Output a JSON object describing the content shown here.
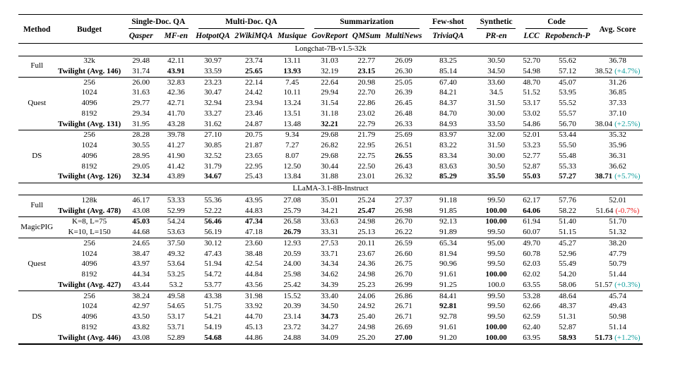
{
  "colors": {
    "teal": "#0f9e9e",
    "red": "#ed1c1c"
  },
  "table": {
    "header_groups": [
      {
        "label": "Method",
        "rowspan": 2
      },
      {
        "label": "Budget",
        "rowspan": 2
      },
      {
        "label": "Single-Doc. QA",
        "colspan": 2,
        "underline": true
      },
      {
        "label": "Multi-Doc. QA",
        "colspan": 3,
        "underline": true
      },
      {
        "label": "Summarization",
        "colspan": 3,
        "underline": true
      },
      {
        "label": "Few-shot",
        "colspan": 1,
        "underline": true
      },
      {
        "label": "Synthetic",
        "colspan": 1,
        "underline": true
      },
      {
        "label": "Code",
        "colspan": 2,
        "underline": true
      },
      {
        "label": "Avg. Score",
        "rowspan": 2
      }
    ],
    "sub_headers": [
      "Qasper",
      "MF-en",
      "HotpotQA",
      "2WikiMQA",
      "Musique",
      "GovReport",
      "QMSum",
      "MultiNews",
      "TriviaQA",
      "PR-en",
      "LCC",
      "Repobench-P"
    ],
    "sections": [
      {
        "title": "Longchat-7B-v1.5-32k",
        "groups": [
          {
            "method": "Full",
            "rows": [
              {
                "budget": "32k",
                "values": [
                  "29.48",
                  "42.11",
                  "30.97",
                  "23.74",
                  "13.11",
                  "31.03",
                  "22.77",
                  "26.09",
                  "83.25",
                  "30.50",
                  "52.70",
                  "55.62"
                ],
                "bold": [],
                "avg": "36.78"
              },
              {
                "budget": "Twilight (Avg. 146)",
                "budget_bold": true,
                "values": [
                  "31.74",
                  "43.91",
                  "33.59",
                  "25.65",
                  "13.93",
                  "32.19",
                  "23.15",
                  "26.30",
                  "85.14",
                  "34.50",
                  "54.98",
                  "57.12"
                ],
                "bold": [
                  1,
                  3,
                  4,
                  6
                ],
                "avg": "38.52",
                "delta": "(+4.7%)",
                "delta_color": "teal"
              }
            ]
          },
          {
            "method": "Quest",
            "rows": [
              {
                "budget": "256",
                "values": [
                  "26.00",
                  "32.83",
                  "23.23",
                  "22.14",
                  "7.45",
                  "22.64",
                  "20.98",
                  "25.05",
                  "67.40",
                  "33.60",
                  "48.70",
                  "45.07"
                ],
                "bold": [],
                "avg": "31.26"
              },
              {
                "budget": "1024",
                "values": [
                  "31.63",
                  "42.36",
                  "30.47",
                  "24.42",
                  "10.11",
                  "29.94",
                  "22.70",
                  "26.39",
                  "84.21",
                  "34.5",
                  "51.52",
                  "53.95"
                ],
                "bold": [],
                "avg": "36.85"
              },
              {
                "budget": "4096",
                "values": [
                  "29.77",
                  "42.71",
                  "32.94",
                  "23.94",
                  "13.24",
                  "31.54",
                  "22.86",
                  "26.45",
                  "84.37",
                  "31.50",
                  "53.17",
                  "55.52"
                ],
                "bold": [],
                "avg": "37.33"
              },
              {
                "budget": "8192",
                "values": [
                  "29.34",
                  "41.70",
                  "33.27",
                  "23.46",
                  "13.51",
                  "31.18",
                  "23.02",
                  "26.48",
                  "84.70",
                  "30.00",
                  "53.02",
                  "55.57"
                ],
                "bold": [],
                "avg": "37.10"
              },
              {
                "budget": "Twilight (Avg. 131)",
                "budget_bold": true,
                "values": [
                  "31.95",
                  "43.28",
                  "31.62",
                  "24.87",
                  "13.48",
                  "32.21",
                  "22.79",
                  "26.33",
                  "84.93",
                  "33.50",
                  "54.86",
                  "56.70"
                ],
                "bold": [
                  5
                ],
                "avg": "38.04",
                "delta": "(+2.5%)",
                "delta_color": "teal"
              }
            ]
          },
          {
            "method": "DS",
            "rows": [
              {
                "budget": "256",
                "values": [
                  "28.28",
                  "39.78",
                  "27.10",
                  "20.75",
                  "9.34",
                  "29.68",
                  "21.79",
                  "25.69",
                  "83.97",
                  "32.00",
                  "52.01",
                  "53.44"
                ],
                "bold": [],
                "avg": "35.32"
              },
              {
                "budget": "1024",
                "values": [
                  "30.55",
                  "41.27",
                  "30.85",
                  "21.87",
                  "7.27",
                  "26.82",
                  "22.95",
                  "26.51",
                  "83.22",
                  "31.50",
                  "53.23",
                  "55.50"
                ],
                "bold": [],
                "avg": "35.96"
              },
              {
                "budget": "4096",
                "values": [
                  "28.95",
                  "41.90",
                  "32.52",
                  "23.65",
                  "8.07",
                  "29.68",
                  "22.75",
                  "26.55",
                  "83.34",
                  "30.00",
                  "52.77",
                  "55.48"
                ],
                "bold": [
                  7
                ],
                "avg": "36.31"
              },
              {
                "budget": "8192",
                "values": [
                  "29.05",
                  "41.42",
                  "31.79",
                  "22.95",
                  "12.50",
                  "30.44",
                  "22.50",
                  "26.43",
                  "83.63",
                  "30.50",
                  "52.87",
                  "55.33"
                ],
                "bold": [],
                "avg": "36.62"
              },
              {
                "budget": "Twilight (Avg. 126)",
                "budget_bold": true,
                "values": [
                  "32.34",
                  "43.89",
                  "34.67",
                  "25.43",
                  "13.84",
                  "31.88",
                  "23.01",
                  "26.32",
                  "85.29",
                  "35.50",
                  "55.03",
                  "57.27"
                ],
                "bold": [
                  0,
                  2,
                  8,
                  9,
                  10,
                  11
                ],
                "avg": "38.71",
                "avg_bold": true,
                "delta": "(+5.7%)",
                "delta_color": "teal"
              }
            ]
          }
        ]
      },
      {
        "title": "LLaMA-3.1-8B-Instruct",
        "groups": [
          {
            "method": "Full",
            "rows": [
              {
                "budget": "128k",
                "values": [
                  "46.17",
                  "53.33",
                  "55.36",
                  "43.95",
                  "27.08",
                  "35.01",
                  "25.24",
                  "27.37",
                  "91.18",
                  "99.50",
                  "62.17",
                  "57.76"
                ],
                "bold": [],
                "avg": "52.01"
              },
              {
                "budget": "Twilight (Avg. 478)",
                "budget_bold": true,
                "values": [
                  "43.08",
                  "52.99",
                  "52.22",
                  "44.83",
                  "25.79",
                  "34.21",
                  "25.47",
                  "26.98",
                  "91.85",
                  "100.00",
                  "64.06",
                  "58.22"
                ],
                "bold": [
                  6,
                  9,
                  10
                ],
                "avg": "51.64",
                "delta": "(-0.7%)",
                "delta_color": "red"
              }
            ]
          },
          {
            "method": "MagicPIG",
            "rows": [
              {
                "budget": "K=8, L=75",
                "values": [
                  "45.03",
                  "54.24",
                  "56.46",
                  "47.34",
                  "26.58",
                  "33.63",
                  "24.98",
                  "26.70",
                  "92.13",
                  "100.00",
                  "61.94",
                  "51.40"
                ],
                "bold": [
                  0,
                  2,
                  3,
                  9
                ],
                "avg": "51.70"
              },
              {
                "budget": "K=10, L=150",
                "values": [
                  "44.68",
                  "53.63",
                  "56.19",
                  "47.18",
                  "26.79",
                  "33.31",
                  "25.13",
                  "26.22",
                  "91.89",
                  "99.50",
                  "60.07",
                  "51.15"
                ],
                "bold": [
                  4
                ],
                "avg": "51.32"
              }
            ]
          },
          {
            "method": "Quest",
            "rows": [
              {
                "budget": "256",
                "values": [
                  "24.65",
                  "37.50",
                  "30.12",
                  "23.60",
                  "12.93",
                  "27.53",
                  "20.11",
                  "26.59",
                  "65.34",
                  "95.00",
                  "49.70",
                  "45.27"
                ],
                "bold": [],
                "avg": "38.20"
              },
              {
                "budget": "1024",
                "values": [
                  "38.47",
                  "49.32",
                  "47.43",
                  "38.48",
                  "20.59",
                  "33.71",
                  "23.67",
                  "26.60",
                  "81.94",
                  "99.50",
                  "60.78",
                  "52.96"
                ],
                "bold": [],
                "avg": "47.79"
              },
              {
                "budget": "4096",
                "values": [
                  "43.97",
                  "53.64",
                  "51.94",
                  "42.54",
                  "24.00",
                  "34.34",
                  "24.36",
                  "26.75",
                  "90.96",
                  "99.50",
                  "62.03",
                  "55.49"
                ],
                "bold": [],
                "avg": "50.79"
              },
              {
                "budget": "8192",
                "values": [
                  "44.34",
                  "53.25",
                  "54.72",
                  "44.84",
                  "25.98",
                  "34.62",
                  "24.98",
                  "26.70",
                  "91.61",
                  "100.00",
                  "62.02",
                  "54.20"
                ],
                "bold": [
                  9
                ],
                "avg": "51.44"
              },
              {
                "budget": "Twilight (Avg. 427)",
                "budget_bold": true,
                "values": [
                  "43.44",
                  "53.2",
                  "53.77",
                  "43.56",
                  "25.42",
                  "34.39",
                  "25.23",
                  "26.99",
                  "91.25",
                  "100.0",
                  "63.55",
                  "58.06"
                ],
                "bold": [],
                "avg": "51.57",
                "delta": "(+0.3%)",
                "delta_color": "teal"
              }
            ]
          },
          {
            "method": "DS",
            "rows": [
              {
                "budget": "256",
                "values": [
                  "38.24",
                  "49.58",
                  "43.38",
                  "31.98",
                  "15.52",
                  "33.40",
                  "24.06",
                  "26.86",
                  "84.41",
                  "99.50",
                  "53.28",
                  "48.64"
                ],
                "bold": [],
                "avg": "45.74"
              },
              {
                "budget": "1024",
                "values": [
                  "42.97",
                  "54.65",
                  "51.75",
                  "33.92",
                  "20.39",
                  "34.50",
                  "24.92",
                  "26.71",
                  "92.81",
                  "99.50",
                  "62.66",
                  "48.37"
                ],
                "bold": [
                  8
                ],
                "avg": "49.43"
              },
              {
                "budget": "4096",
                "values": [
                  "43.50",
                  "53.17",
                  "54.21",
                  "44.70",
                  "23.14",
                  "34.73",
                  "25.40",
                  "26.71",
                  "92.78",
                  "99.50",
                  "62.59",
                  "51.31"
                ],
                "bold": [
                  5
                ],
                "avg": "50.98"
              },
              {
                "budget": "8192",
                "values": [
                  "43.82",
                  "53.71",
                  "54.19",
                  "45.13",
                  "23.72",
                  "34.27",
                  "24.98",
                  "26.69",
                  "91.61",
                  "100.00",
                  "62.40",
                  "52.87"
                ],
                "bold": [
                  9
                ],
                "avg": "51.14"
              },
              {
                "budget": "Twilight (Avg. 446)",
                "budget_bold": true,
                "values": [
                  "43.08",
                  "52.89",
                  "54.68",
                  "44.86",
                  "24.88",
                  "34.09",
                  "25.20",
                  "27.00",
                  "91.20",
                  "100.00",
                  "63.95",
                  "58.93"
                ],
                "bold": [
                  2,
                  7,
                  9,
                  11
                ],
                "avg": "51.73",
                "avg_bold": true,
                "delta": "(+1.2%)",
                "delta_color": "teal"
              }
            ]
          }
        ]
      }
    ]
  }
}
